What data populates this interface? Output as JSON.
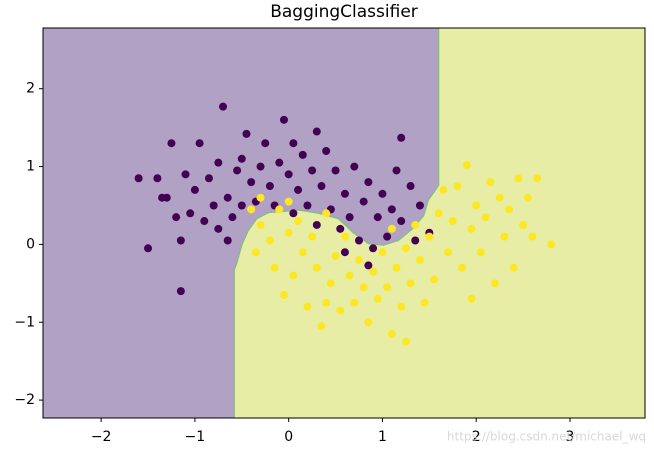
{
  "chart_data": {
    "type": "scatter",
    "title": "BaggingClassifier",
    "watermark": "https://blog.csdn.net/michael_wq",
    "xlim": [
      -2.62,
      3.8
    ],
    "ylim": [
      -2.23,
      2.78
    ],
    "xticks": [
      {
        "value": -2,
        "label": "−2"
      },
      {
        "value": -1,
        "label": "−1"
      },
      0,
      1,
      2,
      3
    ],
    "yticks": [
      {
        "value": -2,
        "label": "−2"
      },
      {
        "value": -1,
        "label": "−1"
      },
      0,
      1,
      2
    ],
    "background_color": "#e8eda5",
    "region": {
      "color": "#b1a1c5",
      "edge_color": "#7fbf7f",
      "x": [
        1.6,
        1.6,
        1.56,
        1.49,
        1.44,
        1.33,
        1.17,
        1.01,
        0.85,
        0.69,
        0.53,
        0.32,
        0.11,
        -0.21,
        -0.34,
        -0.43,
        -0.5,
        -0.55,
        -0.58,
        -0.58
      ],
      "y": [
        2.78,
        0.76,
        0.69,
        0.57,
        0.37,
        0.21,
        0.05,
        -0.01,
        0.01,
        0.15,
        0.33,
        0.4,
        0.44,
        0.41,
        0.33,
        0.18,
        -0.01,
        -0.23,
        -0.33,
        -2.23
      ]
    },
    "series": [
      {
        "color": "#440154",
        "x": [
          -1.6,
          -1.5,
          -1.4,
          -1.3,
          -1.25,
          -1.2,
          -1.15,
          -1.15,
          -1.1,
          -1.05,
          -1.0,
          -0.95,
          -0.9,
          -0.85,
          -0.8,
          -0.75,
          -0.75,
          -0.7,
          -0.65,
          -0.6,
          -0.55,
          -0.5,
          -0.5,
          -0.45,
          -0.4,
          -0.35,
          -0.3,
          -0.25,
          -0.2,
          -0.15,
          -0.1,
          -0.05,
          0.0,
          0.05,
          0.1,
          0.15,
          0.2,
          0.25,
          0.3,
          0.3,
          0.35,
          0.4,
          0.45,
          0.5,
          0.55,
          0.6,
          0.65,
          0.7,
          0.75,
          0.8,
          0.85,
          0.9,
          0.95,
          1.0,
          1.05,
          1.1,
          1.15,
          1.2,
          1.2,
          1.3,
          1.35,
          1.4,
          1.5,
          0.85,
          0.6,
          -1.35,
          -0.65,
          0.05
        ],
        "values": [
          0.85,
          -0.05,
          0.85,
          0.6,
          1.3,
          0.35,
          -0.6,
          0.05,
          0.9,
          0.4,
          0.7,
          1.3,
          0.3,
          0.85,
          0.5,
          1.05,
          0.2,
          1.77,
          0.6,
          0.35,
          0.95,
          1.1,
          0.5,
          1.42,
          0.8,
          0.55,
          1.0,
          1.3,
          0.75,
          0.5,
          1.05,
          1.6,
          0.9,
          1.3,
          0.7,
          1.15,
          0.5,
          0.95,
          1.45,
          0.25,
          0.75,
          1.2,
          0.45,
          0.95,
          0.2,
          0.65,
          0.35,
          1.0,
          0.05,
          0.55,
          0.8,
          -0.05,
          0.35,
          0.65,
          0.1,
          0.45,
          0.95,
          1.37,
          0.3,
          0.75,
          0.05,
          0.5,
          0.15,
          -0.27,
          -0.1,
          0.6,
          0.05,
          0.4
        ]
      },
      {
        "color": "#fde725",
        "x": [
          -0.4,
          -0.35,
          -0.3,
          -0.2,
          -0.15,
          -0.1,
          -0.05,
          0.0,
          0.05,
          0.1,
          0.15,
          0.2,
          0.25,
          0.3,
          0.35,
          0.4,
          0.45,
          0.5,
          0.55,
          0.6,
          0.65,
          0.7,
          0.75,
          0.8,
          0.85,
          0.9,
          0.95,
          1.0,
          1.05,
          1.1,
          1.15,
          1.2,
          1.25,
          1.3,
          1.35,
          1.4,
          1.45,
          1.5,
          1.55,
          1.6,
          1.65,
          1.7,
          1.75,
          1.8,
          1.85,
          1.9,
          1.95,
          2.0,
          2.05,
          2.1,
          2.15,
          2.2,
          2.25,
          2.3,
          2.35,
          2.4,
          2.45,
          2.5,
          2.55,
          2.6,
          2.65,
          2.8,
          1.95,
          1.25,
          0.4,
          -0.3,
          0.0,
          1.1
        ],
        "values": [
          0.45,
          -0.1,
          0.25,
          0.05,
          -0.3,
          0.45,
          -0.65,
          0.15,
          -0.4,
          0.3,
          -0.1,
          -0.8,
          0.1,
          -0.3,
          -1.05,
          0.4,
          -0.5,
          -0.15,
          -0.85,
          0.1,
          -0.4,
          -0.75,
          -0.2,
          -0.55,
          -1.0,
          -0.35,
          -0.7,
          -0.1,
          -0.55,
          -1.15,
          -0.3,
          -0.8,
          -0.05,
          -0.5,
          0.25,
          -0.2,
          -0.75,
          0.1,
          -0.45,
          0.4,
          0.7,
          -0.1,
          0.3,
          0.75,
          -0.3,
          1.02,
          0.2,
          0.5,
          -0.1,
          0.35,
          0.8,
          -0.5,
          0.6,
          0.1,
          0.45,
          -0.3,
          0.85,
          0.25,
          0.6,
          0.1,
          0.85,
          0.0,
          -0.7,
          -1.25,
          -0.75,
          0.6,
          0.55,
          0.2
        ]
      }
    ]
  }
}
